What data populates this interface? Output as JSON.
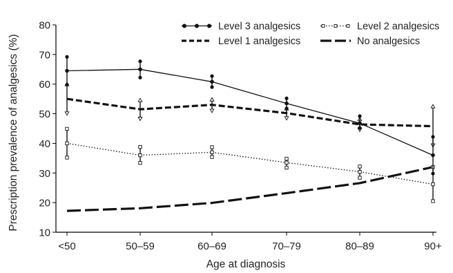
{
  "chart_data": {
    "type": "line",
    "xlabel": "Age at diagnosis",
    "ylabel": "Prescription prevalence of analgesics (%)",
    "categories": [
      "<50",
      "50–59",
      "60–69",
      "70–79",
      "80–89",
      "90+"
    ],
    "ylim": [
      10,
      80
    ],
    "yticks": [
      10,
      20,
      30,
      40,
      50,
      60,
      70,
      80
    ],
    "grid": false,
    "legend_position": "top-right",
    "series": [
      {
        "name": "Level 3 analgesics",
        "style": "solid-thin",
        "marker": "filled-circle",
        "values": [
          64.5,
          65,
          60.8,
          53.5,
          46.8,
          36
        ],
        "ci_low": [
          59.8,
          62.2,
          59,
          51.8,
          45.2,
          29.8
        ],
        "ci_high": [
          69.2,
          67.7,
          62.7,
          55.2,
          49.2,
          42.2
        ]
      },
      {
        "name": "Level 2 analgesics",
        "style": "dotted",
        "marker": "open-square",
        "values": [
          40,
          36,
          37,
          33.5,
          30.4,
          26.2
        ],
        "ci_low": [
          35.2,
          33.4,
          35.4,
          31.8,
          28.4,
          20.5
        ],
        "ci_high": [
          44.9,
          38.8,
          38.7,
          34.8,
          32.2,
          32
        ]
      },
      {
        "name": "Level 1 analgesics",
        "style": "dashed-thick",
        "marker": "triangle",
        "values": [
          55,
          51.5,
          53,
          50.2,
          46.4,
          45.8
        ],
        "ci_low": [
          50.3,
          48.5,
          51.2,
          48.7,
          44.8,
          39.5
        ],
        "ci_high": [
          59.8,
          54.4,
          54.6,
          51.6,
          48,
          52.3
        ]
      },
      {
        "name": "No analgesics",
        "style": "long-dash-thick",
        "marker": "none",
        "values": [
          17.2,
          18.1,
          19.9,
          23.2,
          26.6,
          32
        ],
        "ci_low": [],
        "ci_high": []
      }
    ]
  }
}
